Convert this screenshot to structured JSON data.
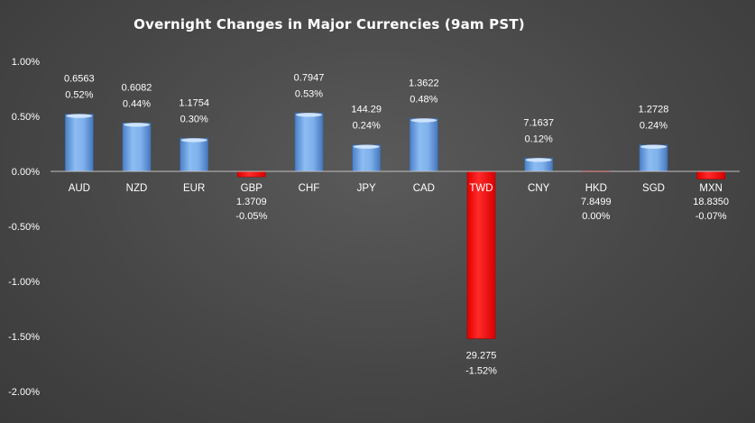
{
  "chart_data": {
    "type": "bar",
    "title": "Overnight Changes in Major Currencies (9am PST)",
    "xlabel": "",
    "ylabel": "",
    "ylim": [
      -2.0,
      1.0
    ],
    "yticks": [
      "1.00%",
      "0.50%",
      "0.00%",
      "-0.50%",
      "-1.00%",
      "-1.50%",
      "-2.00%"
    ],
    "grid": false,
    "legend": "none",
    "categories": [
      "AUD",
      "NZD",
      "EUR",
      "GBP",
      "CHF",
      "JPY",
      "CAD",
      "TWD",
      "CNY",
      "HKD",
      "SGD",
      "MXN"
    ],
    "values": [
      0.52,
      0.44,
      0.3,
      -0.05,
      0.53,
      0.24,
      0.48,
      -1.52,
      0.12,
      0.0,
      0.24,
      -0.07
    ],
    "rates": [
      "0.6563",
      "0.6082",
      "1.1754",
      "1.3709",
      "0.7947",
      "144.29",
      "1.3622",
      "29.275",
      "7.1637",
      "7.8499",
      "1.2728",
      "18.8350"
    ],
    "pct_labels": [
      "0.52%",
      "0.44%",
      "0.30%",
      "-0.05%",
      "0.53%",
      "0.24%",
      "0.48%",
      "-1.52%",
      "0.12%",
      "0.00%",
      "0.24%",
      "-0.07%"
    ],
    "colors": {
      "positive": "#6fa6e8",
      "negative": "#ff1a1a",
      "axis": "#bfbfbf",
      "text": "#ffffff"
    }
  }
}
